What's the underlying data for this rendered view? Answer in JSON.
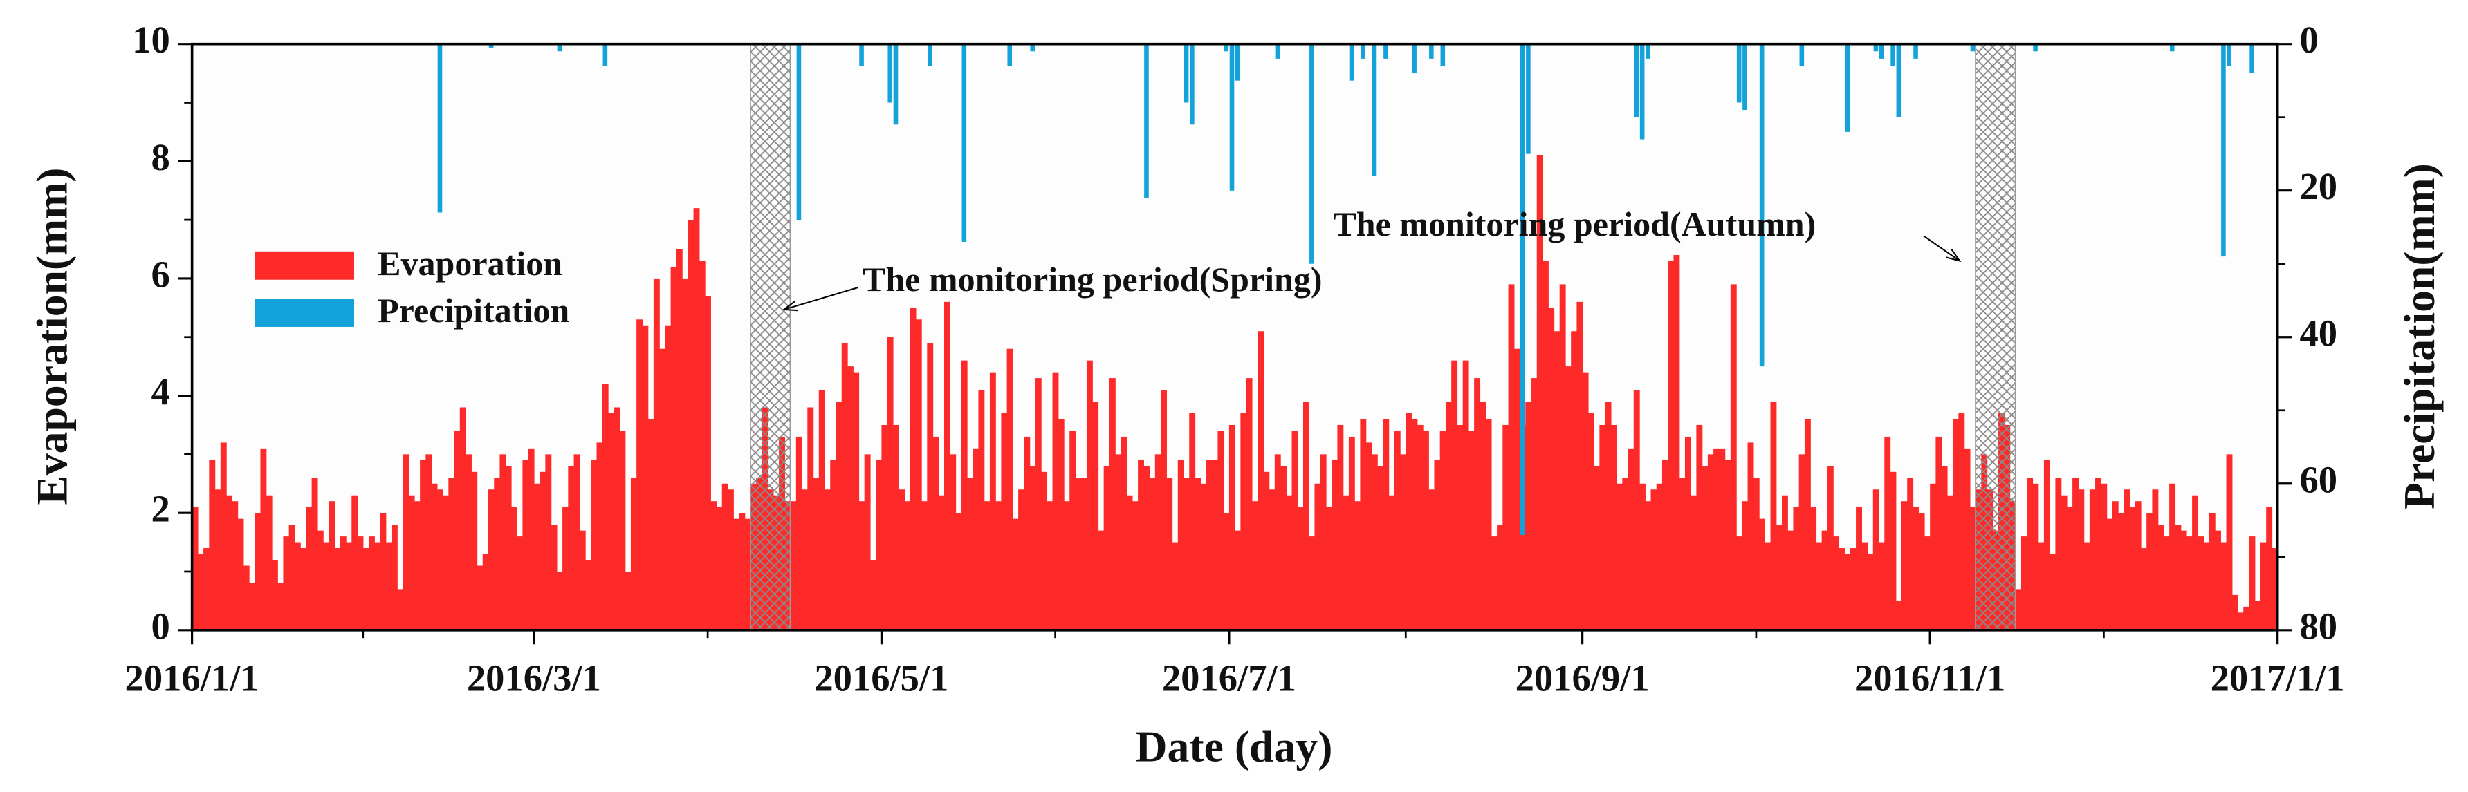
{
  "chart_data": {
    "type": "bar",
    "xlabel": "Date (day)",
    "ylabel": "Evaporation(mm)",
    "y2label": "Precipitation(mm)",
    "xlim": [
      0,
      366
    ],
    "xticks": [
      {
        "value": 0,
        "label": "2016/1/1"
      },
      {
        "value": 60,
        "label": "2016/3/1"
      },
      {
        "value": 121,
        "label": "2016/5/1"
      },
      {
        "value": 182,
        "label": "2016/7/1"
      },
      {
        "value": 244,
        "label": "2016/9/1"
      },
      {
        "value": 305,
        "label": "2016/11/1"
      },
      {
        "value": 366,
        "label": "2017/1/1"
      }
    ],
    "ylim": [
      0,
      10
    ],
    "yticks": [
      0,
      2,
      4,
      6,
      8,
      10
    ],
    "y2lim": [
      0,
      80
    ],
    "y2ticks": [
      0,
      20,
      40,
      60,
      80
    ],
    "y2_inverted": true,
    "legend": "upper left",
    "series": [
      {
        "name": "Evaporation",
        "color": "#fe2a2a",
        "values": [
          2.1,
          1.3,
          1.4,
          2.9,
          2.4,
          3.2,
          2.3,
          2.2,
          1.9,
          1.1,
          0.8,
          2.0,
          3.1,
          2.3,
          1.2,
          0.8,
          1.6,
          1.8,
          1.5,
          1.4,
          2.1,
          2.6,
          1.7,
          1.5,
          2.2,
          1.4,
          1.6,
          1.5,
          2.3,
          1.6,
          1.4,
          1.6,
          1.5,
          2.0,
          1.5,
          1.8,
          0.7,
          3.0,
          2.3,
          2.2,
          2.9,
          3.0,
          2.5,
          2.4,
          2.3,
          2.6,
          3.4,
          3.8,
          3.0,
          2.7,
          1.1,
          1.3,
          2.4,
          2.6,
          3.0,
          2.8,
          2.1,
          1.6,
          2.9,
          3.1,
          2.5,
          2.7,
          3.0,
          1.8,
          1.0,
          2.1,
          2.8,
          3.0,
          1.7,
          1.2,
          2.9,
          3.2,
          4.2,
          3.7,
          3.8,
          3.4,
          1.0,
          2.6,
          5.3,
          5.2,
          3.6,
          6.0,
          4.8,
          5.2,
          6.2,
          6.5,
          6.0,
          7.0,
          7.2,
          6.3,
          5.7,
          2.2,
          2.1,
          2.5,
          2.4,
          1.9,
          2.0,
          1.9,
          2.5,
          2.6,
          3.8,
          2.4,
          2.3,
          3.3,
          2.2,
          2.2,
          3.3,
          2.4,
          3.8,
          2.6,
          4.1,
          2.4,
          2.9,
          3.9,
          4.9,
          4.5,
          4.4,
          2.2,
          3.0,
          1.2,
          2.9,
          3.5,
          5.0,
          3.5,
          2.4,
          2.2,
          5.5,
          5.3,
          2.2,
          4.9,
          3.3,
          2.3,
          5.6,
          3.0,
          2.0,
          4.6,
          2.6,
          3.1,
          4.1,
          2.2,
          4.4,
          2.2,
          3.7,
          4.8,
          1.9,
          2.4,
          3.3,
          2.8,
          4.3,
          2.7,
          2.2,
          4.4,
          3.6,
          2.2,
          3.4,
          2.6,
          2.6,
          4.6,
          3.9,
          1.7,
          2.8,
          4.3,
          3.0,
          3.3,
          2.3,
          2.2,
          2.9,
          2.8,
          2.6,
          3.0,
          4.1,
          2.6,
          1.5,
          2.9,
          2.6,
          3.7,
          2.6,
          2.5,
          2.9,
          2.9,
          3.4,
          2.0,
          3.5,
          1.7,
          3.7,
          4.3,
          2.2,
          5.1,
          2.7,
          2.4,
          3.0,
          2.8,
          2.3,
          3.4,
          2.1,
          3.9,
          1.6,
          2.5,
          3.0,
          2.1,
          2.9,
          3.5,
          2.3,
          3.3,
          2.2,
          3.6,
          3.2,
          3.0,
          2.8,
          3.6,
          2.3,
          3.4,
          3.0,
          3.7,
          3.6,
          3.5,
          3.4,
          2.4,
          2.9,
          3.4,
          3.9,
          4.6,
          3.5,
          4.6,
          3.4,
          4.3,
          3.9,
          3.6,
          1.6,
          1.8,
          3.5,
          5.9,
          4.8,
          3.5,
          3.9,
          4.3,
          8.1,
          6.3,
          5.5,
          5.1,
          5.9,
          4.5,
          5.1,
          5.6,
          4.4,
          3.7,
          2.8,
          3.5,
          3.9,
          3.5,
          2.5,
          2.6,
          3.1,
          4.1,
          2.5,
          2.2,
          2.4,
          2.5,
          2.9,
          6.3,
          6.4,
          2.6,
          3.3,
          2.3,
          3.5,
          2.8,
          3.0,
          3.1,
          3.1,
          2.9,
          5.9,
          1.6,
          2.2,
          3.2,
          2.6,
          1.9,
          1.5,
          3.9,
          1.8,
          2.3,
          1.7,
          2.1,
          3.0,
          3.6,
          2.1,
          1.5,
          1.7,
          2.8,
          1.6,
          1.4,
          1.3,
          1.4,
          2.1,
          1.5,
          1.3,
          2.4,
          1.5,
          3.3,
          2.7,
          0.5,
          2.2,
          2.6,
          2.1,
          2.0,
          1.6,
          2.5,
          3.3,
          2.8,
          2.3,
          3.6,
          3.7,
          3.1,
          2.1,
          2.4,
          3.0,
          2.4,
          1.7,
          3.7,
          3.5,
          2.2,
          0.7,
          1.6,
          2.6,
          2.5,
          1.5,
          2.9,
          1.3,
          2.6,
          2.3,
          2.1,
          2.6,
          2.4,
          1.5,
          2.4,
          2.6,
          2.5,
          1.9,
          2.2,
          2.0,
          2.4,
          2.1,
          2.2,
          1.4,
          2.0,
          2.4,
          1.8,
          1.6,
          2.5,
          1.8,
          1.7,
          1.6,
          2.3,
          1.6,
          1.5,
          2.0,
          1.7,
          1.5,
          3.0,
          0.6,
          0.3,
          0.4,
          1.6,
          0.5,
          1.5,
          2.1,
          1.4
        ]
      },
      {
        "name": "Precipitation",
        "color": "#14a2da",
        "axis": "y2",
        "values": [
          0,
          0,
          0,
          0,
          0,
          0,
          0,
          0,
          0,
          0,
          0,
          0,
          0,
          0,
          0,
          0,
          0,
          0,
          0,
          0,
          0,
          0,
          0,
          0,
          0,
          0,
          0,
          0,
          0,
          0,
          0,
          0,
          0,
          0,
          0,
          0,
          0,
          0,
          0,
          0,
          0,
          0,
          0,
          23,
          0,
          0,
          0,
          0,
          0,
          0,
          0,
          0,
          0.5,
          0,
          0,
          0,
          0,
          0,
          0,
          0,
          0,
          0,
          0,
          0,
          1,
          0,
          0,
          0,
          0,
          0,
          0,
          0,
          3,
          0,
          0,
          0,
          0,
          0,
          0,
          0,
          0,
          0,
          0,
          0,
          0,
          0,
          0,
          0,
          0,
          0,
          0,
          0,
          0,
          0,
          0,
          0,
          0,
          0,
          0,
          0,
          0,
          0,
          0,
          0,
          0,
          0,
          24,
          0,
          0,
          0,
          0,
          0,
          0,
          0,
          0,
          0,
          0,
          3,
          0,
          0,
          0,
          0,
          8,
          11,
          0,
          0,
          0,
          0,
          0,
          3,
          0,
          0,
          0,
          0,
          0,
          27,
          0,
          0,
          0,
          0,
          0,
          0,
          0,
          3,
          0,
          0,
          0,
          1,
          0,
          0,
          0,
          0,
          0,
          0,
          0,
          0,
          0,
          0,
          0,
          0,
          0,
          0,
          0,
          0,
          0,
          0,
          0,
          21,
          0,
          0,
          0,
          0,
          0,
          0,
          8,
          11,
          0,
          0,
          0,
          0,
          0,
          1,
          20,
          5,
          0,
          0,
          0,
          0,
          0,
          0,
          2,
          0,
          0,
          0,
          0,
          0,
          30,
          0,
          0,
          0,
          0,
          0,
          0,
          5,
          0,
          2,
          0,
          18,
          0,
          2,
          0,
          0,
          0,
          0,
          4,
          0,
          0,
          2,
          0,
          3,
          0,
          0,
          0,
          0,
          0,
          0,
          0,
          0,
          0,
          0,
          0,
          0,
          0,
          67,
          15,
          0,
          0,
          0,
          0,
          0,
          0,
          0,
          0,
          0,
          0,
          0,
          0,
          0,
          0,
          0,
          0,
          0,
          0,
          10,
          13,
          2,
          0,
          0,
          0,
          0,
          0,
          0,
          0,
          0,
          0,
          0,
          0,
          0,
          0,
          0,
          0,
          8,
          9,
          0,
          0,
          44,
          0,
          0,
          0,
          0,
          0,
          0,
          3,
          0,
          0,
          0,
          0,
          0,
          0,
          0,
          12,
          0,
          0,
          0,
          0,
          1,
          2,
          0,
          3,
          10,
          0,
          0,
          2,
          0,
          0,
          0,
          0,
          0,
          0,
          0,
          0,
          0,
          1,
          0,
          0,
          0,
          0,
          0,
          0,
          0,
          0,
          0,
          0,
          1,
          0,
          0,
          0,
          0,
          0,
          0,
          0,
          0,
          0,
          0,
          0,
          0,
          0,
          0,
          0,
          0,
          0,
          0,
          0,
          0,
          0,
          0,
          0,
          1,
          0,
          0,
          0,
          0,
          0,
          0,
          0,
          0,
          29,
          3,
          0,
          0,
          0,
          4,
          0,
          0,
          0,
          0
        ]
      }
    ],
    "annotations": [
      {
        "text": "The monitoring period(Spring)",
        "x": [
          98,
          105
        ]
      },
      {
        "text": "The monitoring period(Autumn)",
        "x": [
          313,
          320
        ]
      }
    ]
  }
}
